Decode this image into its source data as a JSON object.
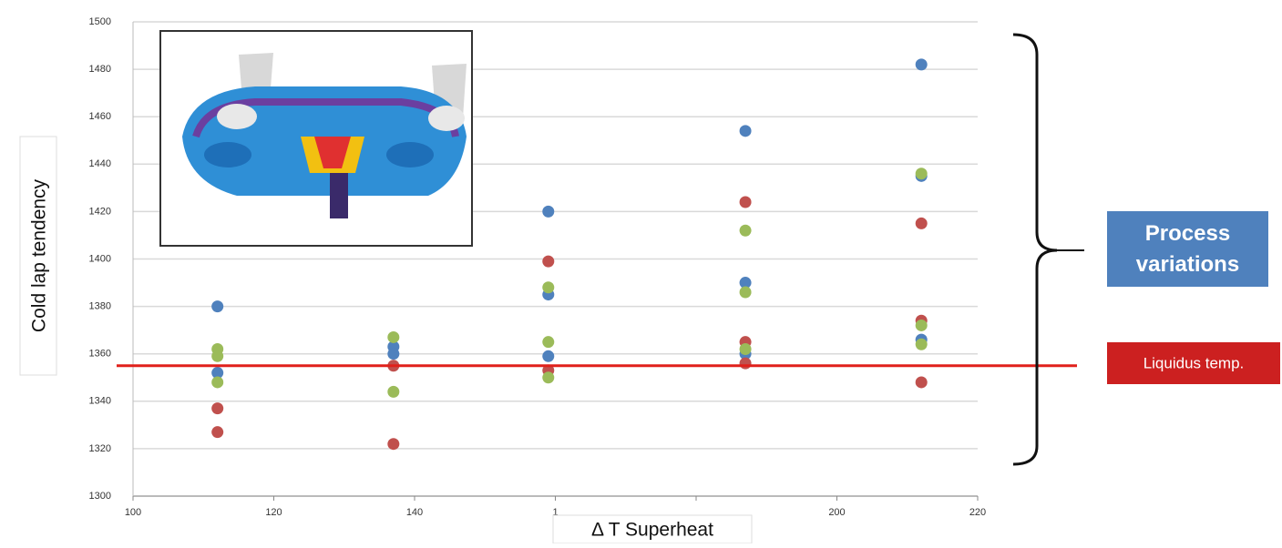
{
  "chart_data": {
    "type": "scatter",
    "x_label": "Δ T Superheat",
    "y_label": "Cold lap tendency",
    "xlim": [
      100,
      220
    ],
    "xticks": [
      100,
      120,
      140,
      {
        "value": 160,
        "label": "1"
      },
      {
        "value": 180,
        "label": null
      },
      200,
      220
    ],
    "ylim": [
      1300,
      1500
    ],
    "yticks": [
      1300,
      1320,
      1340,
      1360,
      1380,
      1400,
      1420,
      1440,
      1460,
      1480,
      1500
    ],
    "grid": true,
    "series": [
      {
        "color": "#4f81bd",
        "x": [
          112,
          112,
          137,
          137,
          159,
          159,
          159,
          187,
          187,
          187,
          212,
          212,
          212
        ],
        "values": [
          1380,
          1352,
          1363,
          1360,
          1420,
          1385,
          1359,
          1454,
          1390,
          1360,
          1482,
          1435,
          1366
        ]
      },
      {
        "color": "#c0504d",
        "x": [
          112,
          112,
          137,
          137,
          159,
          159,
          187,
          187,
          187,
          212,
          212,
          212
        ],
        "values": [
          1337,
          1327,
          1355,
          1322,
          1399,
          1353,
          1424,
          1365,
          1356,
          1415,
          1374,
          1348
        ]
      },
      {
        "color": "#9bbb59",
        "x": [
          112,
          112,
          112,
          137,
          137,
          159,
          159,
          159,
          187,
          187,
          187,
          212,
          212,
          212
        ],
        "values": [
          1362,
          1359,
          1348,
          1367,
          1344,
          1388,
          1365,
          1350,
          1412,
          1386,
          1362,
          1436,
          1372,
          1364
        ]
      }
    ],
    "reference_line": {
      "value": 1355,
      "color": "#e0201b",
      "label": "Liquidus temp."
    },
    "bracket_label": "Process variations"
  }
}
